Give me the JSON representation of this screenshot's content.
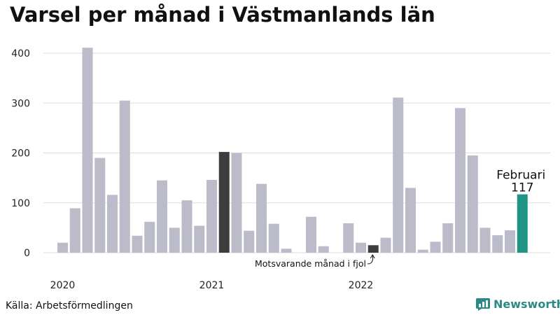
{
  "title": "Varsel per månad i Västmanlands län",
  "source": "Källa: Arbetsförmedlingen",
  "brand": {
    "name": "Newsworthy",
    "icon": "newsworthy-logo-icon",
    "color": "#2a8a86"
  },
  "chart_data": {
    "type": "bar",
    "title": "Varsel per månad i Västmanlands län",
    "xlabel": "",
    "ylabel": "",
    "ylim": [
      0,
      420
    ],
    "yticks": [
      0,
      100,
      200,
      300,
      400
    ],
    "grid": true,
    "x_tick_labels": [
      {
        "label": "2020",
        "index": 0
      },
      {
        "label": "2021",
        "index": 12
      },
      {
        "label": "2022",
        "index": 24
      }
    ],
    "values": [
      20,
      89,
      411,
      190,
      116,
      305,
      34,
      62,
      145,
      50,
      105,
      54,
      146,
      202,
      200,
      44,
      138,
      58,
      8,
      0,
      72,
      13,
      0,
      59,
      20,
      15,
      30,
      311,
      130,
      6,
      22,
      59,
      290,
      195,
      50,
      35,
      45,
      117
    ],
    "highlight": {
      "index": 13,
      "index_2": 25
    },
    "colors": {
      "default": "#bcbbc9",
      "highlight": "#3d3d3d",
      "current": "#1f9585",
      "grid": "#dddddd"
    },
    "annotations": {
      "current": {
        "index": 37,
        "label": "Februari",
        "value_label": "117"
      },
      "last_year": {
        "index": 25,
        "label": "Motsvarande månad i fjol"
      }
    }
  }
}
